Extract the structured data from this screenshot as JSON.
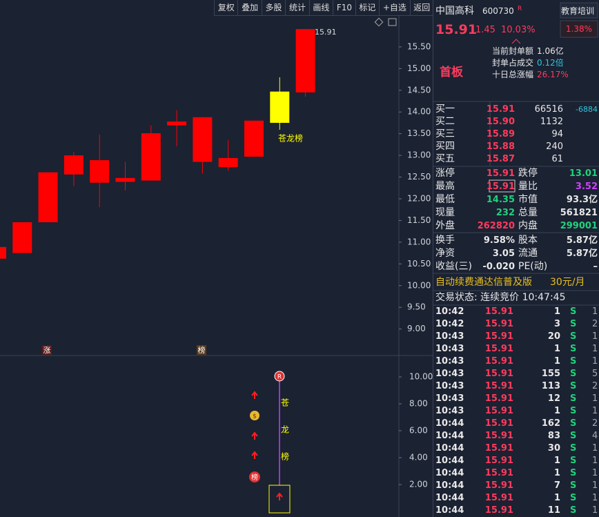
{
  "toolbar": [
    "复权",
    "叠加",
    "多股",
    "统计",
    "画线",
    "F10",
    "标记",
    "+自选",
    "返回"
  ],
  "kline": {
    "type": "candlestick",
    "ylim": [
      8.39,
      16.23
    ],
    "yticks": [
      {
        "value": 9,
        "label": "9.00"
      },
      {
        "value": 9.5,
        "label": "9.50"
      },
      {
        "value": 10,
        "label": "10.00"
      },
      {
        "value": 10.5,
        "label": "10.50"
      },
      {
        "value": 11,
        "label": "11.00"
      },
      {
        "value": 11.5,
        "label": "11.50"
      },
      {
        "value": 12,
        "label": "12.00"
      },
      {
        "value": 12.5,
        "label": "12.50"
      },
      {
        "value": 13,
        "label": "13.00"
      },
      {
        "value": 13.5,
        "label": "13.50"
      },
      {
        "value": 14,
        "label": "14.00"
      },
      {
        "value": 14.5,
        "label": "14.50"
      },
      {
        "value": 15,
        "label": "15.00"
      },
      {
        "value": 15.5,
        "label": "15.50"
      }
    ],
    "open": [
      10.62,
      10.75,
      11.46,
      12.56,
      12.37,
      12.39,
      12.42,
      13.69,
      12.85,
      12.73,
      12.97,
      13.75,
      14.45
    ],
    "close": [
      10.89,
      11.46,
      12.61,
      13.0,
      12.89,
      12.48,
      13.51,
      13.78,
      13.88,
      12.94,
      13.8,
      14.47,
      15.91
    ],
    "high": [
      10.89,
      11.46,
      12.61,
      13.08,
      13.48,
      12.85,
      13.69,
      14.04,
      13.88,
      13.35,
      13.8,
      14.8,
      15.91
    ],
    "low": [
      10.62,
      10.75,
      11.46,
      12.29,
      11.81,
      12.19,
      12.42,
      13.21,
      12.58,
      12.64,
      12.97,
      13.59,
      14.35
    ],
    "colors": [
      "#ff0000",
      "#ff0000",
      "#ff0000",
      "#ff0000",
      "#ff0000",
      "#ff0000",
      "#ff0000",
      "#ff0000",
      "#ff0000",
      "#ff0000",
      "#ff0000",
      "#ffff00",
      "#ff0000"
    ],
    "annotation": "苍龙榜",
    "markers": [
      "涨",
      "榜"
    ]
  },
  "indicator": {
    "ylim": [
      -0.36,
      11.54
    ],
    "yticks": [
      {
        "value": 2,
        "label": "2.00"
      },
      {
        "value": 4,
        "label": "4.00"
      },
      {
        "value": 6,
        "label": "6.00"
      },
      {
        "value": 8,
        "label": "8.00"
      },
      {
        "value": 10,
        "label": "10.00"
      }
    ],
    "badge": "R",
    "label_chars": [
      "苍",
      "龙",
      "榜"
    ],
    "icon_text": "榜"
  },
  "quote": {
    "name": "中国高科",
    "code": "600730",
    "badge": "R",
    "sector": "教育培训",
    "sector_change": "1.38%",
    "price": "15.91",
    "change": "1.45",
    "change_pct": "10.03%",
    "info": [
      [
        "当前封单额",
        "1.06亿"
      ],
      [
        "封单占成交",
        "0.12倍"
      ],
      [
        "十日总涨幅",
        "26.17%"
      ]
    ],
    "tag": "首板",
    "book": [
      [
        "买一",
        "15.91",
        "66516",
        "-6884"
      ],
      [
        "买二",
        "15.90",
        "1132"
      ],
      [
        "买三",
        "15.89",
        "94"
      ],
      [
        "买四",
        "15.88",
        "240"
      ],
      [
        "买五",
        "15.87",
        "61"
      ]
    ],
    "stats": [
      [
        "涨停",
        "15.91",
        "跌停",
        "13.01"
      ],
      [
        "最高",
        "15.91",
        "量比",
        "3.52"
      ],
      [
        "最低",
        "14.35",
        "市值",
        "93.3亿"
      ],
      [
        "现量",
        "232",
        "总量",
        "561821"
      ],
      [
        "外盘",
        "262820",
        "内盘",
        "299001"
      ]
    ],
    "finance": [
      [
        "换手",
        "9.58%",
        "股本",
        "5.87亿"
      ],
      [
        "净资",
        "3.05",
        "流通",
        "5.87亿"
      ],
      [
        "收益(三)",
        "-0.020",
        "PE(动)",
        "–"
      ]
    ],
    "ad": [
      "自动续费通达信普及版",
      "30元/月"
    ],
    "status": "交易状态: 连续竞价 10:47:45",
    "ticks": [
      [
        "10:42",
        "15.91",
        "1",
        "S",
        "1"
      ],
      [
        "10:42",
        "15.91",
        "3",
        "S",
        "2"
      ],
      [
        "10:43",
        "15.91",
        "20",
        "S",
        "1"
      ],
      [
        "10:43",
        "15.91",
        "1",
        "S",
        "1"
      ],
      [
        "10:43",
        "15.91",
        "1",
        "S",
        "1"
      ],
      [
        "10:43",
        "15.91",
        "155",
        "S",
        "5"
      ],
      [
        "10:43",
        "15.91",
        "113",
        "S",
        "2"
      ],
      [
        "10:43",
        "15.91",
        "12",
        "S",
        "1"
      ],
      [
        "10:43",
        "15.91",
        "1",
        "S",
        "1"
      ],
      [
        "10:44",
        "15.91",
        "162",
        "S",
        "2"
      ],
      [
        "10:44",
        "15.91",
        "83",
        "S",
        "4"
      ],
      [
        "10:44",
        "15.91",
        "30",
        "S",
        "1"
      ],
      [
        "10:44",
        "15.91",
        "1",
        "S",
        "1"
      ],
      [
        "10:44",
        "15.91",
        "1",
        "S",
        "1"
      ],
      [
        "10:44",
        "15.91",
        "7",
        "S",
        "1"
      ],
      [
        "10:44",
        "15.91",
        "1",
        "S",
        "1"
      ],
      [
        "10:44",
        "15.91",
        "11",
        "S",
        "1"
      ]
    ]
  }
}
